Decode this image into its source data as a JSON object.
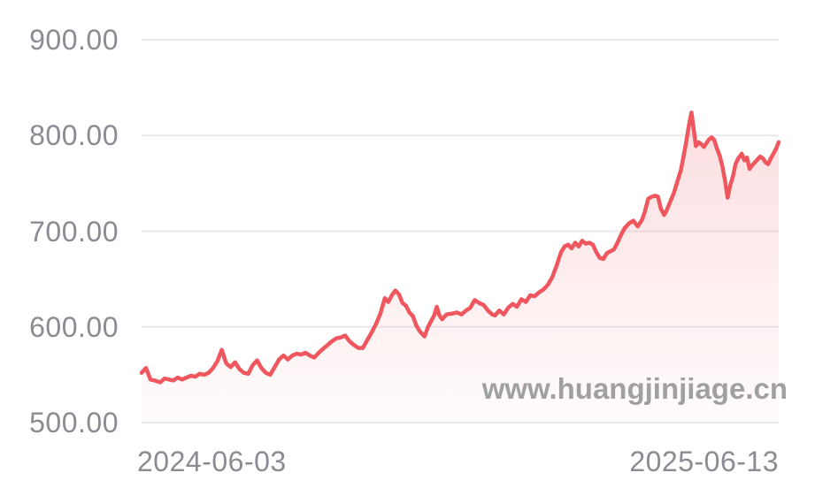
{
  "page": {
    "background": "#ffffff"
  },
  "watermark": {
    "text": "www.huangjinjiage.cn",
    "color": "#9c9c9c"
  },
  "chart_data": {
    "type": "area",
    "title": "",
    "series": [
      {
        "name": "gold-price"
      }
    ],
    "xlabel": "",
    "ylabel": "",
    "x_tick_labels": [
      "2024-06-03",
      "2025-06-13"
    ],
    "y_tick_labels": [
      "900.00",
      "800.00",
      "700.00",
      "600.00",
      "500.00"
    ],
    "y_ticks": [
      900,
      800,
      700,
      600,
      500
    ],
    "ylim": [
      500,
      900
    ],
    "grid": true,
    "legend": "none",
    "line_color": "#ef565d",
    "grid_color": "#e9e9ef",
    "axis_label_color": "#8b8b93",
    "fill_top_color": "rgba(240,86,93,0.24)",
    "fill_bottom_color": "rgba(240,86,93,0.02)",
    "points": [
      [
        0,
        552
      ],
      [
        5,
        557
      ],
      [
        10,
        545
      ],
      [
        15,
        544
      ],
      [
        21,
        542
      ],
      [
        26,
        546
      ],
      [
        31,
        545
      ],
      [
        36,
        544
      ],
      [
        41,
        547
      ],
      [
        46,
        545
      ],
      [
        51,
        547
      ],
      [
        56,
        549
      ],
      [
        61,
        548
      ],
      [
        66,
        551
      ],
      [
        71,
        550
      ],
      [
        76,
        552
      ],
      [
        81,
        557
      ],
      [
        86,
        564
      ],
      [
        91,
        576
      ],
      [
        96,
        562
      ],
      [
        101,
        558
      ],
      [
        106,
        563
      ],
      [
        111,
        556
      ],
      [
        116,
        552
      ],
      [
        121,
        551
      ],
      [
        126,
        560
      ],
      [
        131,
        565
      ],
      [
        136,
        557
      ],
      [
        141,
        552
      ],
      [
        146,
        550
      ],
      [
        151,
        558
      ],
      [
        156,
        566
      ],
      [
        161,
        570
      ],
      [
        166,
        566
      ],
      [
        171,
        570
      ],
      [
        176,
        572
      ],
      [
        181,
        571
      ],
      [
        186,
        573
      ],
      [
        191,
        570
      ],
      [
        196,
        568
      ],
      [
        201,
        573
      ],
      [
        206,
        577
      ],
      [
        211,
        581
      ],
      [
        216,
        585
      ],
      [
        221,
        588
      ],
      [
        226,
        589
      ],
      [
        231,
        591
      ],
      [
        236,
        585
      ],
      [
        241,
        581
      ],
      [
        246,
        578
      ],
      [
        251,
        578
      ],
      [
        256,
        586
      ],
      [
        261,
        594
      ],
      [
        266,
        603
      ],
      [
        271,
        614
      ],
      [
        276,
        630
      ],
      [
        280,
        626
      ],
      [
        284,
        633
      ],
      [
        288,
        638
      ],
      [
        292,
        634
      ],
      [
        296,
        625
      ],
      [
        300,
        622
      ],
      [
        304,
        615
      ],
      [
        308,
        611
      ],
      [
        312,
        601
      ],
      [
        316,
        595
      ],
      [
        321,
        590
      ],
      [
        325,
        600
      ],
      [
        328,
        605
      ],
      [
        332,
        612
      ],
      [
        335,
        621
      ],
      [
        338,
        612
      ],
      [
        341,
        608
      ],
      [
        346,
        613
      ],
      [
        353,
        614
      ],
      [
        358,
        615
      ],
      [
        363,
        613
      ],
      [
        368,
        617
      ],
      [
        373,
        620
      ],
      [
        378,
        628
      ],
      [
        383,
        625
      ],
      [
        388,
        623
      ],
      [
        393,
        617
      ],
      [
        398,
        613
      ],
      [
        401,
        612
      ],
      [
        406,
        617
      ],
      [
        411,
        613
      ],
      [
        416,
        620
      ],
      [
        421,
        624
      ],
      [
        426,
        621
      ],
      [
        431,
        629
      ],
      [
        436,
        626
      ],
      [
        441,
        633
      ],
      [
        446,
        632
      ],
      [
        451,
        636
      ],
      [
        456,
        639
      ],
      [
        461,
        644
      ],
      [
        466,
        652
      ],
      [
        471,
        664
      ],
      [
        476,
        678
      ],
      [
        480,
        684
      ],
      [
        484,
        686
      ],
      [
        488,
        682
      ],
      [
        492,
        688
      ],
      [
        496,
        684
      ],
      [
        500,
        690
      ],
      [
        504,
        687
      ],
      [
        508,
        688
      ],
      [
        512,
        686
      ],
      [
        516,
        678
      ],
      [
        520,
        672
      ],
      [
        524,
        671
      ],
      [
        528,
        677
      ],
      [
        532,
        679
      ],
      [
        536,
        681
      ],
      [
        540,
        688
      ],
      [
        544,
        696
      ],
      [
        548,
        703
      ],
      [
        553,
        708
      ],
      [
        558,
        711
      ],
      [
        563,
        705
      ],
      [
        568,
        712
      ],
      [
        571,
        720
      ],
      [
        575,
        734
      ],
      [
        579,
        736
      ],
      [
        583,
        737
      ],
      [
        586,
        736
      ],
      [
        589,
        724
      ],
      [
        593,
        717
      ],
      [
        596,
        722
      ],
      [
        600,
        731
      ],
      [
        604,
        740
      ],
      [
        608,
        752
      ],
      [
        612,
        764
      ],
      [
        615,
        778
      ],
      [
        618,
        793
      ],
      [
        621,
        810
      ],
      [
        624,
        824
      ],
      [
        626,
        810
      ],
      [
        629,
        789
      ],
      [
        632,
        793
      ],
      [
        635,
        791
      ],
      [
        638,
        788
      ],
      [
        641,
        792
      ],
      [
        644,
        796
      ],
      [
        647,
        798
      ],
      [
        650,
        795
      ],
      [
        653,
        786
      ],
      [
        656,
        779
      ],
      [
        659,
        768
      ],
      [
        662,
        753
      ],
      [
        665,
        735
      ],
      [
        668,
        748
      ],
      [
        671,
        757
      ],
      [
        674,
        770
      ],
      [
        677,
        776
      ],
      [
        681,
        781
      ],
      [
        684,
        774
      ],
      [
        687,
        777
      ],
      [
        690,
        765
      ],
      [
        693,
        769
      ],
      [
        696,
        772
      ],
      [
        699,
        775
      ],
      [
        702,
        778
      ],
      [
        705,
        776
      ],
      [
        708,
        772
      ],
      [
        711,
        770
      ],
      [
        714,
        776
      ],
      [
        717,
        781
      ],
      [
        720,
        786
      ],
      [
        723,
        793
      ]
    ]
  }
}
